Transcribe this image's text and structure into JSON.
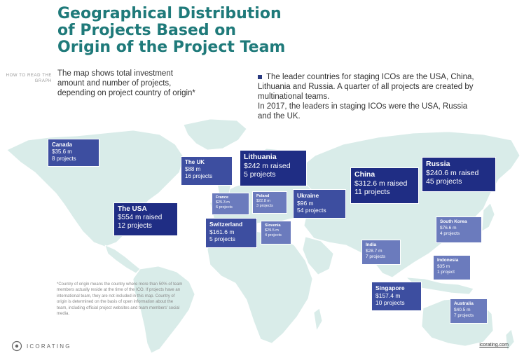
{
  "title": "Geographical Distribution of Projects Based on Origin of the Project Team",
  "how_to_read_label": "HOW TO READ THE GRAPH",
  "how_to_read_text": "The map shows total investment amount and number of projects, depending on project country of origin*",
  "leader_text_1": "The leader countries for staging ICOs are the USA, China, Lithuania and Russia. A quarter of all projects are created by multinational teams.",
  "leader_text_2": "In 2017, the leaders in staging ICOs were the USA, Russia and the UK.",
  "footnote": "*Country of origin means the country where more than 50% of team members actually reside at the time of the ICO. If projects have an international team, they are not included in this map. Country of origin is determined on the basis of open information about the team, including official project websites and team members' social media.",
  "logo_text": "ICORATING",
  "website": "icorating.com",
  "colors": {
    "title": "#1f7a7a",
    "land": "#d9ece9",
    "box_dark": "#1f2d84",
    "box_mid": "#3d4ea0",
    "box_light": "#6b7bbd"
  },
  "countries": {
    "canada": {
      "name": "Canada",
      "amount": "$35.6 m",
      "projects": "8 projects"
    },
    "usa": {
      "name": "The USA",
      "amount": "$554 m raised",
      "projects": "12 projects"
    },
    "uk": {
      "name": "The UK",
      "amount": "$88 m",
      "projects": "16 projects"
    },
    "france": {
      "name": "France",
      "amount": "$25.3 m",
      "projects": "6 projects"
    },
    "poland": {
      "name": "Poland",
      "amount": "$22.8 m",
      "projects": "3 projects"
    },
    "switzerland": {
      "name": "Switzerland",
      "amount": "$161.6 m",
      "projects": "5 projects"
    },
    "slovenia": {
      "name": "Slovenia",
      "amount": "$29.5 m",
      "projects": "4 projects"
    },
    "lithuania": {
      "name": "Lithuania",
      "amount": "$242 m raised",
      "projects": "5 projects"
    },
    "ukraine": {
      "name": "Ukraine",
      "amount": "$96 m",
      "projects": "54 projects"
    },
    "china": {
      "name": "China",
      "amount": "$312.6 m raised",
      "projects": "11 projects"
    },
    "russia": {
      "name": "Russia",
      "amount": "$240.6 m raised",
      "projects": "45 projects"
    },
    "south_korea": {
      "name": "South Korea",
      "amount": "$76.6 m",
      "projects": "4 projects"
    },
    "india": {
      "name": "India",
      "amount": "$28.7 m",
      "projects": "7 projects"
    },
    "indonesia": {
      "name": "Indonesia",
      "amount": "$35 m",
      "projects": "1 project"
    },
    "singapore": {
      "name": "Singapore",
      "amount": "$157.4 m",
      "projects": "10 projects"
    },
    "australia": {
      "name": "Australia",
      "amount": "$40.5 m",
      "projects": "7 projects"
    }
  }
}
